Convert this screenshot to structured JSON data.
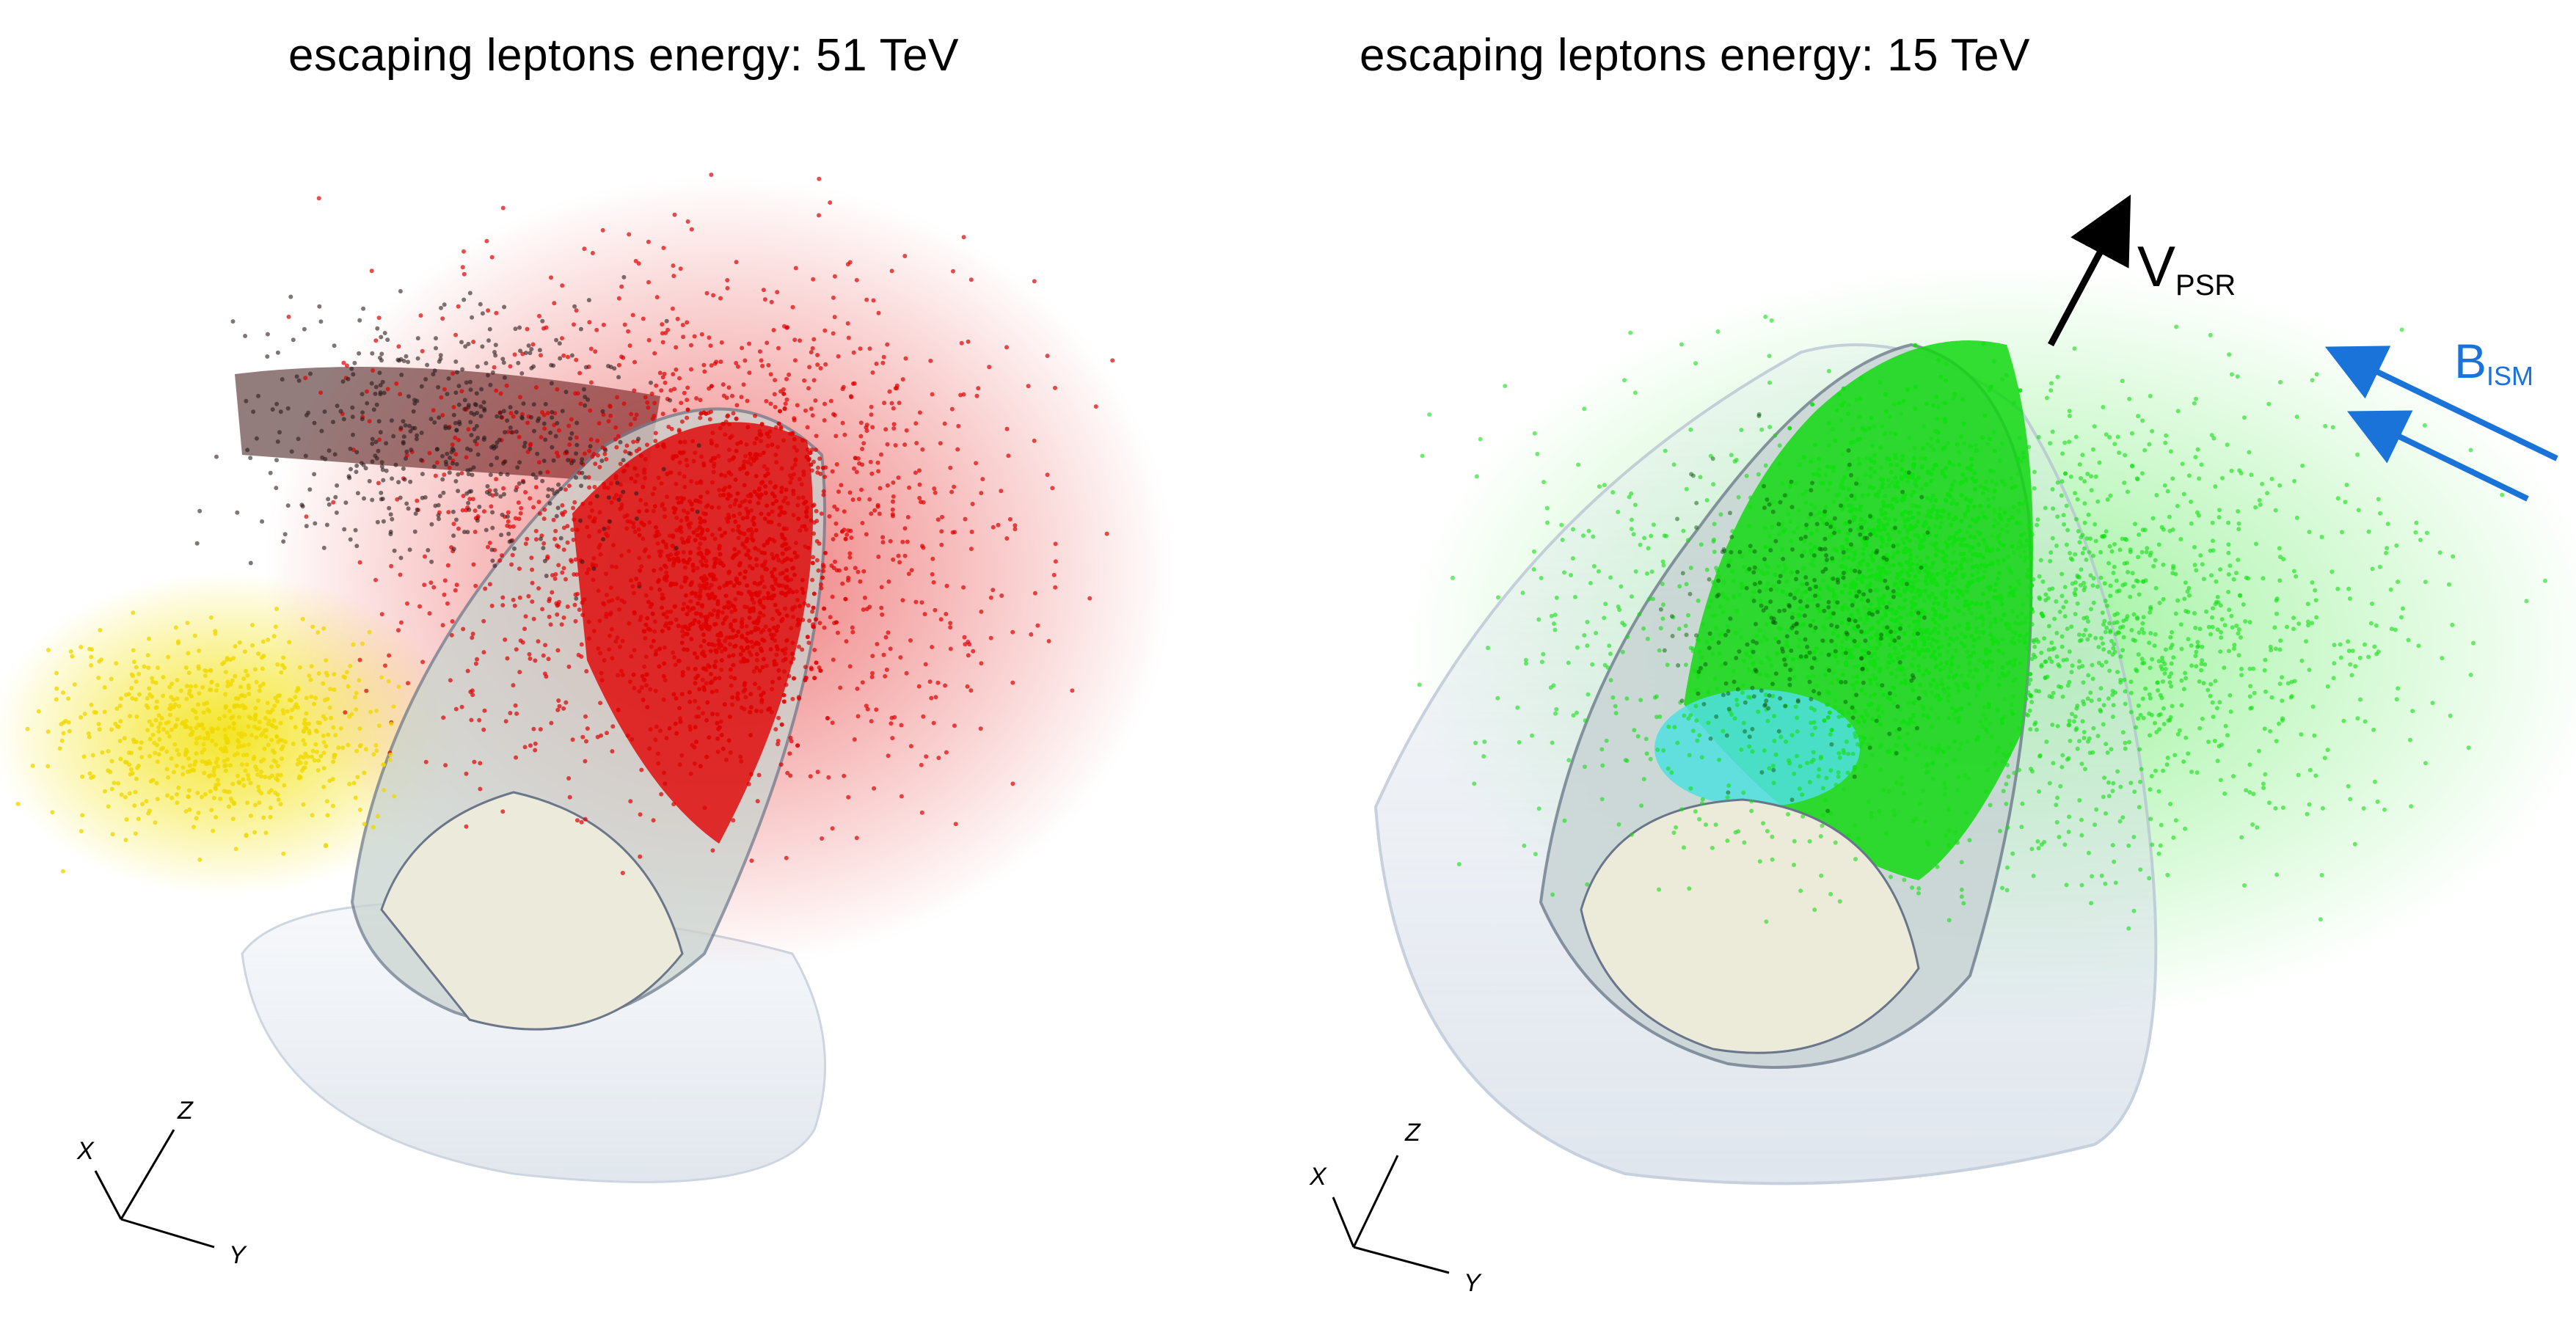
{
  "panels": [
    {
      "title": "escaping leptons energy: 51 TeV",
      "particle_colors": [
        "#e00000",
        "#2a1a1a",
        "#f0d800"
      ]
    },
    {
      "title": "escaping leptons energy: 15 TeV",
      "particle_colors": [
        "#10e010",
        "#0a5a0a",
        "#30e0e0"
      ]
    }
  ],
  "axes": {
    "x": "X",
    "y": "Y",
    "z": "Z"
  },
  "annotations": {
    "velocity_main": "V",
    "velocity_sub": "PSR",
    "field_main": "B",
    "field_sub": "ISM",
    "field_color": "#1a73d9"
  }
}
